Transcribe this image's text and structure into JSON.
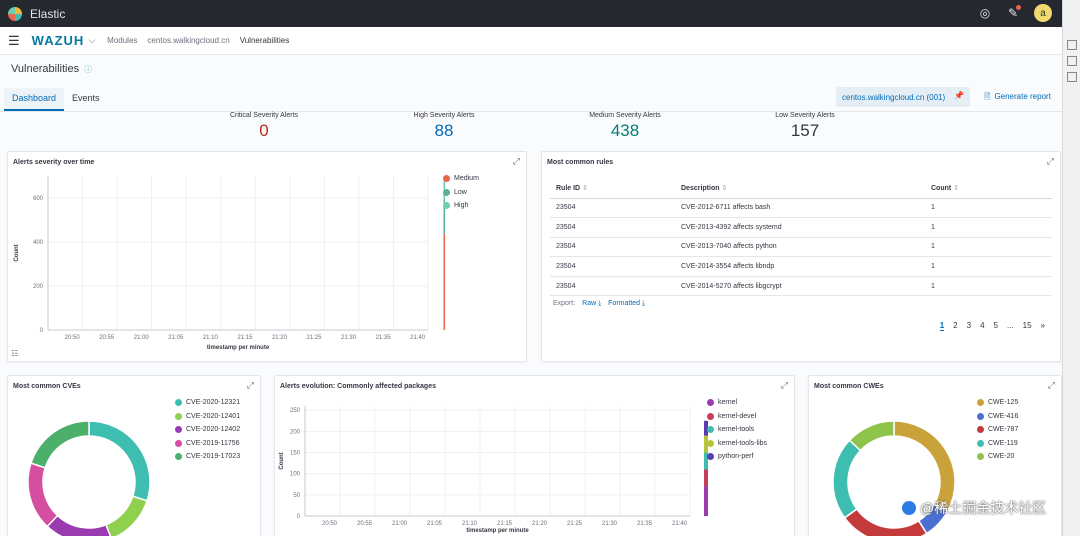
{
  "app": {
    "title": "Elastic"
  },
  "header": {
    "brand": "WAZUH",
    "breadcrumbs": [
      "Modules",
      "centos.walkingcloud.cn",
      "Vulnerabilities"
    ]
  },
  "page": {
    "title": "Vulnerabilities"
  },
  "tabs": [
    {
      "label": "Dashboard",
      "active": true
    },
    {
      "label": "Events",
      "active": false
    }
  ],
  "agent": {
    "label": "centos.walkingcloud.cn (001)"
  },
  "actions": {
    "generate_report": "Generate report"
  },
  "severity": [
    {
      "label": "Critical Severity Alerts",
      "value": "0",
      "color": "#bd271e"
    },
    {
      "label": "High Severity Alerts",
      "value": "88",
      "color": "#006bb8"
    },
    {
      "label": "Medium Severity Alerts",
      "value": "438",
      "color": "#017d73"
    },
    {
      "label": "Low Severity Alerts",
      "value": "157",
      "color": "#343741"
    }
  ],
  "panels": {
    "alerts_over_time": {
      "title": "Alerts severity over time",
      "ylabel": "Count",
      "xlabel": "timestamp per minute",
      "yticks": [
        "0",
        "200",
        "400",
        "600"
      ],
      "xticks": [
        "20:50",
        "20:55",
        "21:00",
        "21:05",
        "21:10",
        "21:15",
        "21:20",
        "21:25",
        "21:30",
        "21:35",
        "21:40"
      ],
      "legend": [
        {
          "name": "Medium",
          "color": "#e7664c"
        },
        {
          "name": "Low",
          "color": "#54b399"
        },
        {
          "name": "High",
          "color": "#6dccb1"
        }
      ]
    },
    "most_common_rules": {
      "title": "Most common rules",
      "columns": [
        "Rule ID",
        "Description",
        "Count"
      ],
      "rows": [
        {
          "id": "23504",
          "desc": "CVE-2012-6711 affects bash",
          "count": "1"
        },
        {
          "id": "23504",
          "desc": "CVE-2013-4392 affects systemd",
          "count": "1"
        },
        {
          "id": "23504",
          "desc": "CVE-2013-7040 affects python",
          "count": "1"
        },
        {
          "id": "23504",
          "desc": "CVE-2014-3554 affects libndp",
          "count": "1"
        },
        {
          "id": "23504",
          "desc": "CVE-2014-5270 affects libgcrypt",
          "count": "1"
        }
      ],
      "export_label": "Export:",
      "export_raw": "Raw",
      "export_formatted": "Formatted",
      "pages": [
        "1",
        "2",
        "3",
        "4",
        "5",
        "...",
        "15",
        "»"
      ]
    },
    "most_common_cves": {
      "title": "Most common CVEs",
      "legend": [
        {
          "name": "CVE-2020-12321",
          "color": "#3ebeb0"
        },
        {
          "name": "CVE-2020-12401",
          "color": "#8fd14f"
        },
        {
          "name": "CVE-2020-12402",
          "color": "#9b3bb0"
        },
        {
          "name": "CVE-2019-11756",
          "color": "#d64ea0"
        },
        {
          "name": "CVE-2019-17023",
          "color": "#4caf6a"
        }
      ]
    },
    "alerts_evolution": {
      "title": "Alerts evolution: Commonly affected packages",
      "ylabel": "Count",
      "xlabel": "timestamp per minute",
      "yticks": [
        "0",
        "50",
        "100",
        "150",
        "200",
        "250"
      ],
      "xticks": [
        "20:50",
        "20:55",
        "21:00",
        "21:05",
        "21:10",
        "21:15",
        "21:20",
        "21:25",
        "21:30",
        "21:35",
        "21:40"
      ],
      "legend": [
        {
          "name": "kernel",
          "color": "#9b3bb0"
        },
        {
          "name": "kernel-devel",
          "color": "#c4405a"
        },
        {
          "name": "kernel-tools",
          "color": "#3ebeb0"
        },
        {
          "name": "kernel-tools-libs",
          "color": "#b5c43a"
        },
        {
          "name": "python-perf",
          "color": "#5b3bb0"
        }
      ]
    },
    "most_common_cwes": {
      "title": "Most common CWEs",
      "legend": [
        {
          "name": "CWE-125",
          "color": "#c9a23a"
        },
        {
          "name": "CWE-416",
          "color": "#4a6fd1"
        },
        {
          "name": "CWE-787",
          "color": "#c43a3a"
        },
        {
          "name": "CWE-119",
          "color": "#3ebeb0"
        },
        {
          "name": "CWE-20",
          "color": "#8fc44a"
        }
      ]
    }
  },
  "chart_data": [
    {
      "type": "bar",
      "title": "Alerts severity over time",
      "xlabel": "timestamp per minute",
      "ylabel": "Count",
      "ylim": [
        0,
        700
      ],
      "x": [
        "21:40"
      ],
      "series": [
        {
          "name": "Medium",
          "values": [
            438
          ]
        },
        {
          "name": "Low",
          "values": [
            157
          ]
        },
        {
          "name": "High",
          "values": [
            88
          ]
        }
      ]
    },
    {
      "type": "pie",
      "title": "Most common CVEs",
      "categories": [
        "CVE-2020-12321",
        "CVE-2020-12401",
        "CVE-2020-12402",
        "CVE-2019-11756",
        "CVE-2019-17023"
      ],
      "values": [
        30,
        14,
        18,
        18,
        20
      ]
    },
    {
      "type": "bar",
      "title": "Alerts evolution: Commonly affected packages",
      "xlabel": "timestamp per minute",
      "ylabel": "Count",
      "ylim": [
        0,
        260
      ],
      "x": [
        "21:40"
      ],
      "series": [
        {
          "name": "kernel",
          "values": [
            70
          ]
        },
        {
          "name": "kernel-devel",
          "values": [
            40
          ]
        },
        {
          "name": "kernel-tools",
          "values": [
            40
          ]
        },
        {
          "name": "kernel-tools-libs",
          "values": [
            40
          ]
        },
        {
          "name": "python-perf",
          "values": [
            35
          ]
        }
      ]
    },
    {
      "type": "pie",
      "title": "Most common CWEs",
      "categories": [
        "CWE-125",
        "CWE-416",
        "CWE-787",
        "CWE-119",
        "CWE-20"
      ],
      "values": [
        33,
        8,
        24,
        22,
        13
      ]
    }
  ],
  "watermark": "@稀土掘金技术社区"
}
